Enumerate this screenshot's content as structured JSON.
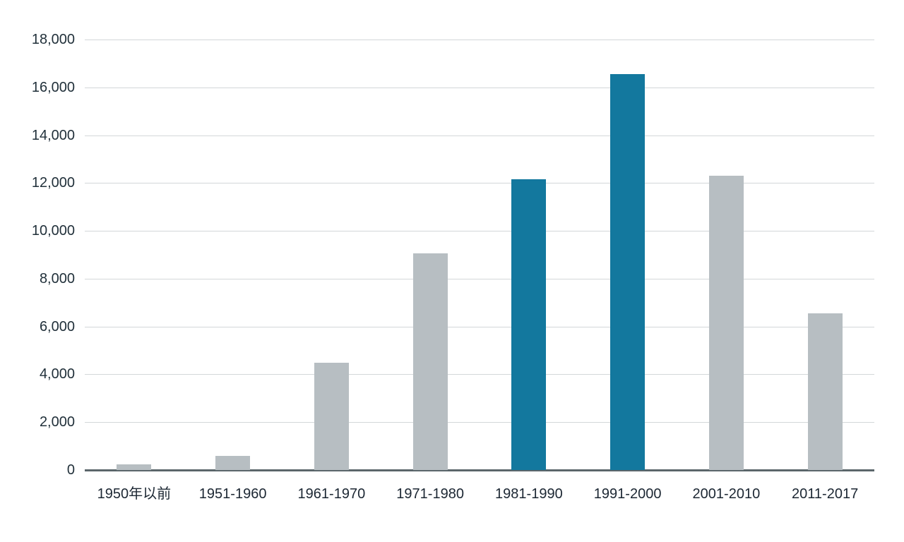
{
  "chart_data": {
    "type": "bar",
    "title": "",
    "xlabel": "",
    "ylabel": "",
    "categories": [
      "1950年以前",
      "1951-1960",
      "1961-1970",
      "1971-1980",
      "1981-1990",
      "1991-2000",
      "2001-2010",
      "2011-2017"
    ],
    "values": [
      250,
      600,
      4500,
      9050,
      12150,
      16550,
      12300,
      6550
    ],
    "highlighted": [
      false,
      false,
      false,
      false,
      true,
      true,
      false,
      false
    ],
    "ylim": [
      0,
      18000
    ],
    "y_ticks": [
      0,
      2000,
      4000,
      6000,
      8000,
      10000,
      12000,
      14000,
      16000,
      18000
    ],
    "y_tick_labels": [
      "0",
      "2,000",
      "4,000",
      "6,000",
      "8,000",
      "10,000",
      "12,000",
      "14,000",
      "16,000",
      "18,000"
    ],
    "grid": true,
    "legend": "none",
    "colors": {
      "bar_default": "#b7bec2",
      "bar_highlight": "#13789e",
      "gridline": "#d3d7d9",
      "axis_line": "#5b666b",
      "y_tick_text": "#21303a",
      "x_tick_text": "#1c2733",
      "background": "#ffffff"
    }
  }
}
